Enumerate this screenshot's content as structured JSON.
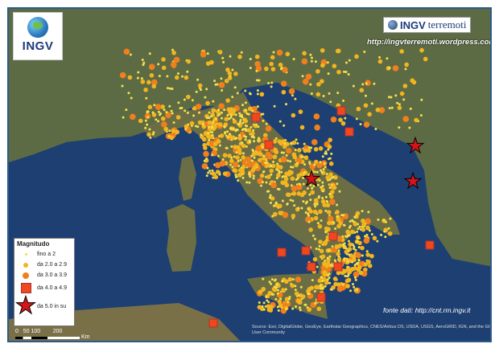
{
  "logo": {
    "text": "INGV"
  },
  "brand": {
    "bold": "INGV",
    "light": "terremoti",
    "url": "http://ingvterremoti.wordpress.com"
  },
  "legend": {
    "title": "Magnitudo",
    "items": [
      {
        "label": "fino a 2",
        "symbol": "small-dot",
        "color": "#f4e04a"
      },
      {
        "label": "da 2.0 a 2.9",
        "symbol": "circle",
        "color": "#f2b51e"
      },
      {
        "label": "da 3.0 a 3.9",
        "symbol": "circle",
        "color": "#f07f1d"
      },
      {
        "label": "da 4.0 a 4.9",
        "symbol": "square",
        "color": "#f0471c"
      },
      {
        "label": "da 5.0 in su",
        "symbol": "star",
        "color": "#d3151a"
      }
    ]
  },
  "scale": {
    "ticks": [
      "0",
      "50",
      "100",
      "200"
    ],
    "unit": "Km"
  },
  "source": "fonte dati: http://cnt.rm.ingv.it",
  "credits": "Source: Esri, DigitalGlobe, GeoEye, Earthstar Geographics, CNES/Airbus DS, USDA, USGS, AeroGRID, IGN, and the GIS User Community"
}
